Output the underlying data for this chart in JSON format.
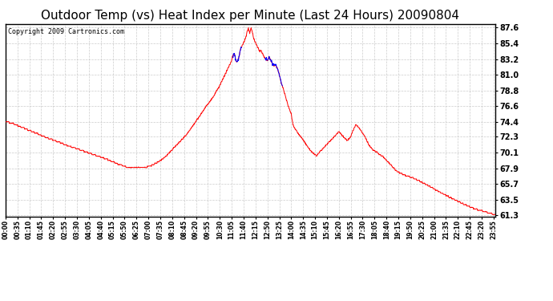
{
  "title": "Outdoor Temp (vs) Heat Index per Minute (Last 24 Hours) 20090804",
  "copyright": "Copyright 2009 Cartronics.com",
  "yticks": [
    87.6,
    85.4,
    83.2,
    81.0,
    78.8,
    76.6,
    74.4,
    72.3,
    70.1,
    67.9,
    65.7,
    63.5,
    61.3
  ],
  "ylim": [
    61.3,
    87.6
  ],
  "bg_color": "#ffffff",
  "grid_color": "#c0c0c0",
  "line1_color": "red",
  "line2_color": "blue",
  "xtick_interval_minutes": 35,
  "total_minutes": 1440,
  "title_fontsize": 11,
  "copyright_fontsize": 6,
  "figwidth": 6.9,
  "figheight": 3.75,
  "dpi": 100
}
